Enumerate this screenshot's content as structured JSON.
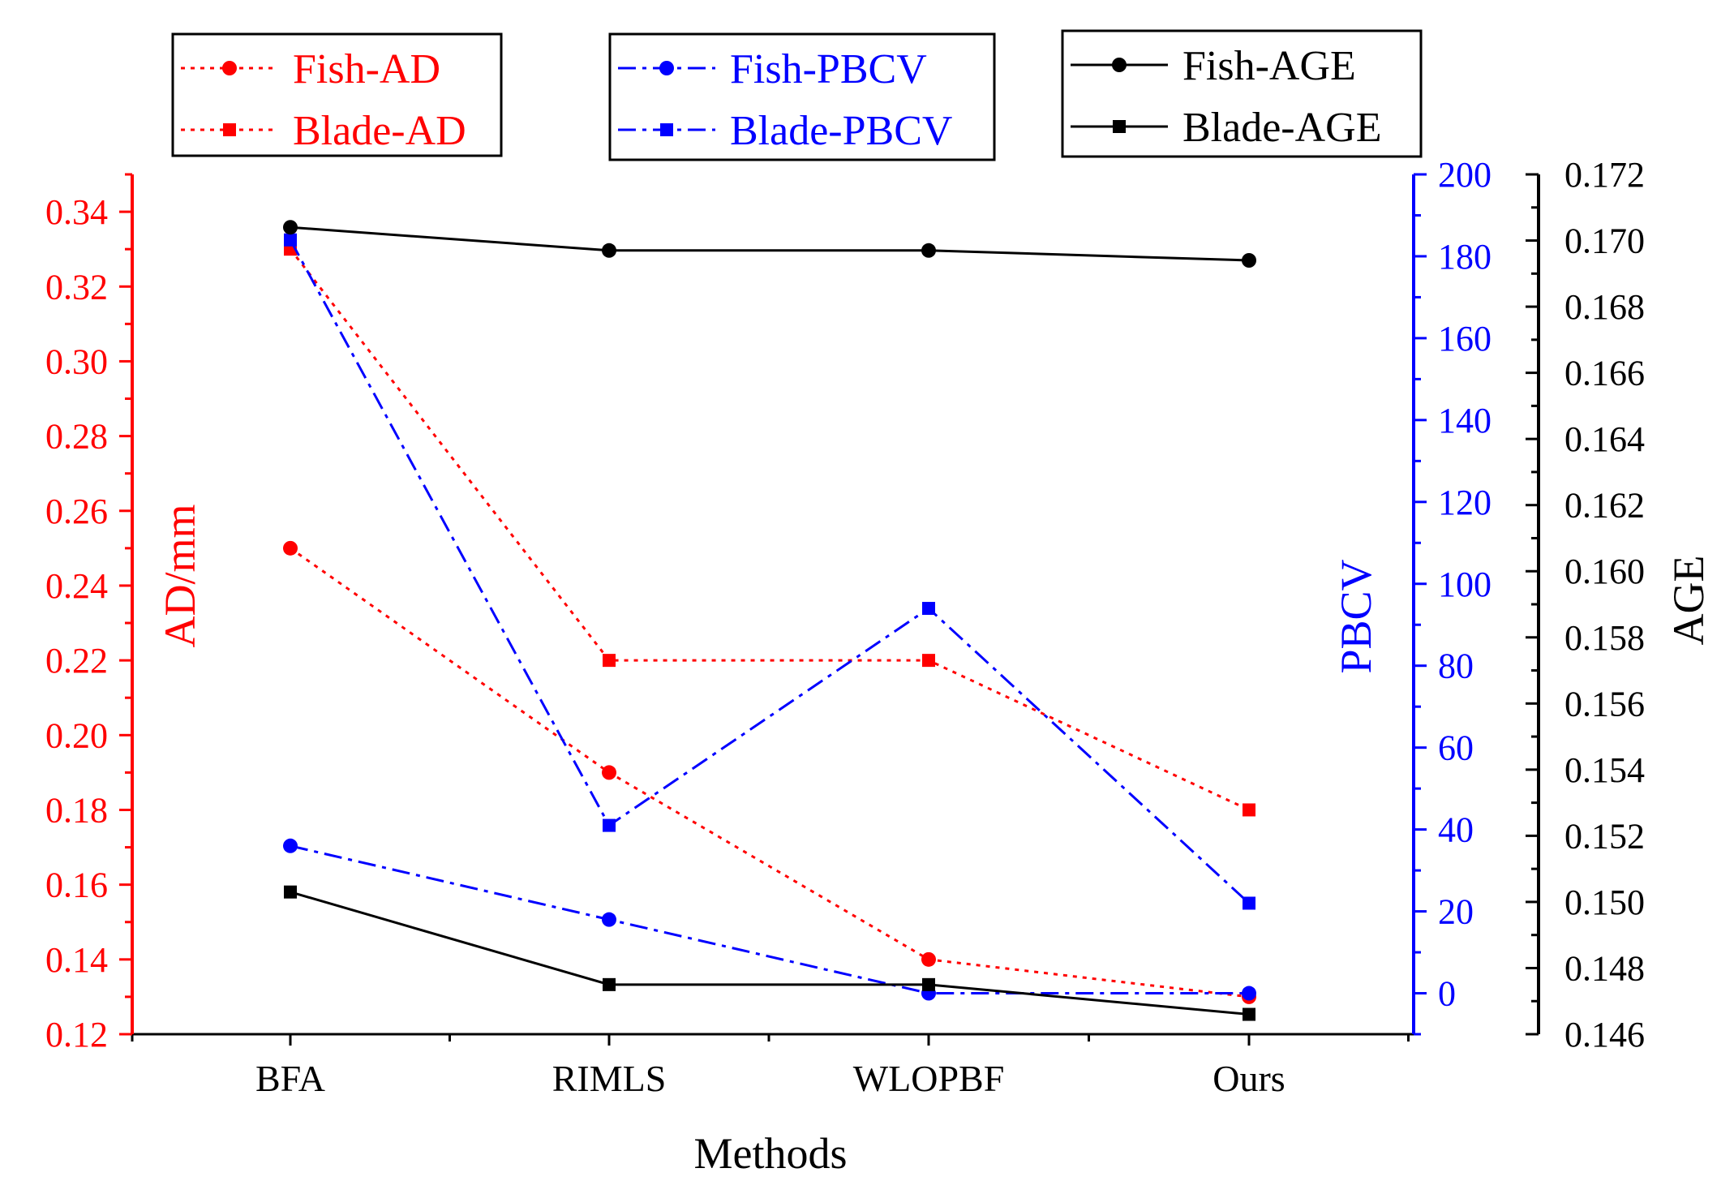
{
  "chart_data": {
    "type": "line",
    "categories": [
      "BFA",
      "RIMLS",
      "WLOPBF",
      "Ours"
    ],
    "xlabel": "Methods",
    "axes": {
      "left": {
        "label": "AD/mm",
        "color": "#ff0000",
        "ylim": [
          0.12,
          0.34
        ],
        "ticks": [
          "0.12",
          "0.14",
          "0.16",
          "0.18",
          "0.20",
          "0.22",
          "0.24",
          "0.26",
          "0.28",
          "0.30",
          "0.32",
          "0.34"
        ],
        "axis_max": 0.35
      },
      "right1": {
        "label": "PBCV",
        "color": "#0000ff",
        "ylim": [
          -10,
          200
        ],
        "ticks": [
          "0",
          "20",
          "40",
          "60",
          "80",
          "100",
          "120",
          "140",
          "160",
          "180",
          "200"
        ]
      },
      "right2": {
        "label": "AGE",
        "color": "#000000",
        "ylim": [
          0.146,
          0.172
        ],
        "ticks": [
          "0.146",
          "0.148",
          "0.150",
          "0.152",
          "0.154",
          "0.156",
          "0.158",
          "0.160",
          "0.162",
          "0.164",
          "0.166",
          "0.168",
          "0.170",
          "0.172"
        ]
      }
    },
    "series": [
      {
        "name": "Fish-AD",
        "axis": "left",
        "color": "#ff0000",
        "marker": "circle",
        "style": "dotted",
        "values": [
          0.25,
          0.19,
          0.14,
          0.13
        ]
      },
      {
        "name": "Blade-AD",
        "axis": "left",
        "color": "#ff0000",
        "marker": "square",
        "style": "dotted",
        "values": [
          0.33,
          0.22,
          0.22,
          0.18
        ]
      },
      {
        "name": "Fish-PBCV",
        "axis": "right1",
        "color": "#0000ff",
        "marker": "circle",
        "style": "dashdot",
        "values": [
          36,
          18,
          0,
          0
        ]
      },
      {
        "name": "Blade-PBCV",
        "axis": "right1",
        "color": "#0000ff",
        "marker": "square",
        "style": "dashdot",
        "values": [
          184,
          41,
          94,
          22
        ]
      },
      {
        "name": "Fish-AGE",
        "axis": "right2",
        "color": "#000000",
        "marker": "circle",
        "style": "solid",
        "values": [
          0.1704,
          0.1697,
          0.1697,
          0.1694
        ]
      },
      {
        "name": "Blade-AGE",
        "axis": "right2",
        "color": "#000000",
        "marker": "square",
        "style": "solid",
        "values": [
          0.1503,
          0.1475,
          0.1475,
          0.1466
        ]
      }
    ],
    "legend": [
      {
        "group": "ad",
        "entries": [
          "Fish-AD",
          "Blade-AD"
        ]
      },
      {
        "group": "pbcv",
        "entries": [
          "Fish-PBCV",
          "Blade-PBCV"
        ]
      },
      {
        "group": "age",
        "entries": [
          "Fish-AGE",
          "Blade-AGE"
        ]
      }
    ]
  }
}
